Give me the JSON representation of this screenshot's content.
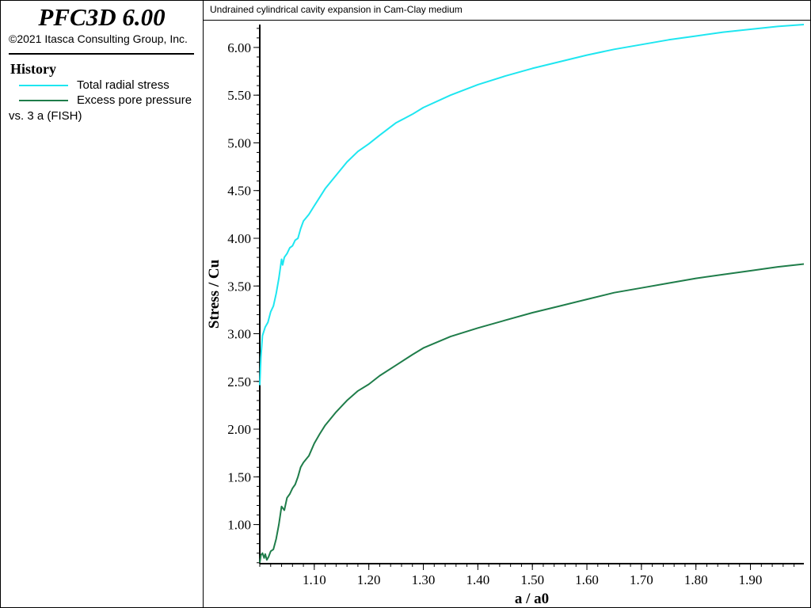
{
  "app": {
    "title": "PFC3D 6.00",
    "copyright": "©2021 Itasca Consulting Group, Inc."
  },
  "history": {
    "heading": "History",
    "legend": [
      {
        "label": "Total radial stress",
        "color": "#1ee6f0"
      },
      {
        "label": "Excess pore pressure",
        "color": "#1f7d4a"
      }
    ],
    "vs_label": "vs. 3 a (FISH)"
  },
  "plot_title": "Undrained cylindrical cavity expansion in Cam-Clay medium",
  "chart_data": {
    "type": "line",
    "title": "Undrained cylindrical cavity expansion in Cam-Clay medium",
    "xlabel": "a / a0",
    "ylabel": "Stress / Cu",
    "xlim": [
      1.0,
      1.998
    ],
    "ylim": [
      0.59,
      6.24
    ],
    "x_ticks": [
      "1.10",
      "1.20",
      "1.30",
      "1.40",
      "1.50",
      "1.60",
      "1.70",
      "1.80",
      "1.90"
    ],
    "y_ticks": [
      "1.00",
      "1.50",
      "2.00",
      "2.50",
      "3.00",
      "3.50",
      "4.00",
      "4.50",
      "5.00",
      "5.50",
      "6.00"
    ],
    "grid": false,
    "legend_position": "left panel",
    "series": [
      {
        "name": "Total radial stress",
        "color": "#1ee6f0",
        "x": [
          1.0,
          1.002,
          1.005,
          1.01,
          1.015,
          1.02,
          1.025,
          1.03,
          1.035,
          1.04,
          1.042,
          1.045,
          1.05,
          1.055,
          1.06,
          1.065,
          1.07,
          1.075,
          1.08,
          1.09,
          1.1,
          1.11,
          1.12,
          1.14,
          1.16,
          1.18,
          1.2,
          1.22,
          1.25,
          1.28,
          1.3,
          1.35,
          1.4,
          1.45,
          1.5,
          1.55,
          1.6,
          1.65,
          1.7,
          1.75,
          1.8,
          1.85,
          1.9,
          1.95,
          1.998
        ],
        "values": [
          2.46,
          2.75,
          2.98,
          3.07,
          3.12,
          3.23,
          3.29,
          3.42,
          3.58,
          3.78,
          3.72,
          3.8,
          3.84,
          3.9,
          3.92,
          3.98,
          4.0,
          4.1,
          4.18,
          4.25,
          4.34,
          4.43,
          4.52,
          4.66,
          4.8,
          4.91,
          4.99,
          5.08,
          5.21,
          5.3,
          5.37,
          5.5,
          5.61,
          5.7,
          5.78,
          5.85,
          5.92,
          5.98,
          6.03,
          6.08,
          6.12,
          6.16,
          6.19,
          6.22,
          6.24
        ]
      },
      {
        "name": "Excess pore pressure",
        "color": "#1f7d4a",
        "x": [
          1.0,
          1.002,
          1.005,
          1.008,
          1.01,
          1.013,
          1.016,
          1.02,
          1.025,
          1.03,
          1.035,
          1.04,
          1.045,
          1.05,
          1.055,
          1.06,
          1.065,
          1.07,
          1.075,
          1.08,
          1.09,
          1.1,
          1.11,
          1.12,
          1.14,
          1.16,
          1.18,
          1.2,
          1.22,
          1.25,
          1.28,
          1.3,
          1.35,
          1.4,
          1.45,
          1.5,
          1.55,
          1.6,
          1.65,
          1.7,
          1.75,
          1.8,
          1.85,
          1.9,
          1.95,
          1.998
        ],
        "values": [
          0.6,
          0.68,
          0.7,
          0.65,
          0.69,
          0.63,
          0.66,
          0.72,
          0.74,
          0.85,
          1.0,
          1.19,
          1.15,
          1.28,
          1.32,
          1.38,
          1.42,
          1.5,
          1.6,
          1.65,
          1.72,
          1.85,
          1.95,
          2.04,
          2.18,
          2.3,
          2.4,
          2.47,
          2.56,
          2.67,
          2.78,
          2.85,
          2.97,
          3.06,
          3.14,
          3.22,
          3.29,
          3.36,
          3.43,
          3.48,
          3.53,
          3.58,
          3.62,
          3.66,
          3.7,
          3.73
        ]
      }
    ]
  }
}
